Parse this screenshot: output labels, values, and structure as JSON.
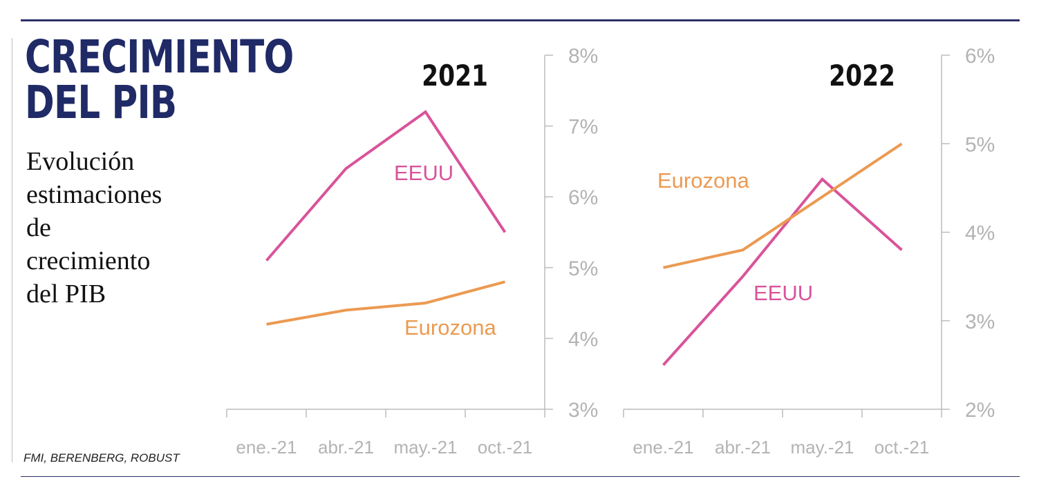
{
  "header": {
    "title_lines": [
      "CRECIMIENTO",
      "DEL PIB"
    ],
    "subtitle_lines": [
      "Evolución",
      "estimaciones",
      "de",
      "crecimiento",
      "del PIB"
    ]
  },
  "footer": {
    "source": "FMI, BERENBERG, ROBUST"
  },
  "colors": {
    "eeuu": "#d9539a",
    "eurozona": "#eb9a52",
    "axis": "#bcbcbc",
    "tick_text": "#b3b3b3",
    "navy": "#1f2a66"
  },
  "chart_data": [
    {
      "type": "line",
      "title": "2021",
      "categories": [
        "ene.-21",
        "abr.-21",
        "may.-21",
        "oct.-21"
      ],
      "ylim": [
        3,
        8
      ],
      "y_ticks": [
        "3%",
        "4%",
        "5%",
        "6%",
        "7%",
        "8%"
      ],
      "y_axis_side": "right",
      "grid": false,
      "series": [
        {
          "name": "EEUU",
          "values": [
            5.1,
            6.4,
            7.2,
            5.5
          ]
        },
        {
          "name": "Eurozona",
          "values": [
            4.2,
            4.4,
            4.5,
            4.8
          ]
        }
      ]
    },
    {
      "type": "line",
      "title": "2022",
      "categories": [
        "ene.-21",
        "abr.-21",
        "may.-21",
        "oct.-21"
      ],
      "ylim": [
        2,
        6
      ],
      "y_ticks": [
        "2%",
        "3%",
        "4%",
        "5%",
        "6%"
      ],
      "y_axis_side": "right",
      "grid": false,
      "series": [
        {
          "name": "EEUU",
          "values": [
            2.5,
            3.5,
            4.6,
            3.8
          ]
        },
        {
          "name": "Eurozona",
          "values": [
            3.6,
            3.8,
            4.4,
            5.0
          ]
        }
      ]
    }
  ]
}
